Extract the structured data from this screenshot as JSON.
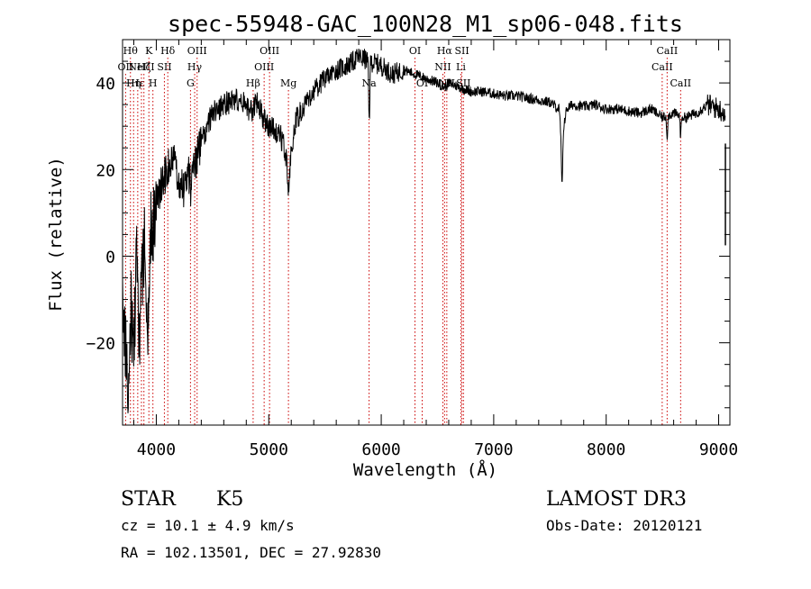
{
  "chart_data": {
    "type": "line",
    "title": "spec-55948-GAC_100N28_M1_sp06-048.fits",
    "xlabel": "Wavelength (Å)",
    "ylabel": "Flux (relative)",
    "xlim": [
      3700,
      9100
    ],
    "ylim": [
      -39,
      50
    ],
    "xticks": [
      4000,
      5000,
      6000,
      7000,
      8000,
      9000
    ],
    "xtick_labels": [
      "4000",
      "5000",
      "6000",
      "7000",
      "8000",
      "9000"
    ],
    "yticks": [
      -20,
      0,
      20,
      40
    ],
    "ytick_labels": [
      "−20",
      "0",
      "20",
      "40"
    ],
    "anchors": [
      [
        3700,
        -8
      ],
      [
        3725,
        -22
      ],
      [
        3750,
        -30
      ],
      [
        3775,
        -12
      ],
      [
        3800,
        -24
      ],
      [
        3825,
        2
      ],
      [
        3850,
        -20
      ],
      [
        3875,
        -4
      ],
      [
        3900,
        6
      ],
      [
        3925,
        -18
      ],
      [
        3950,
        8
      ],
      [
        3975,
        10
      ],
      [
        4000,
        12
      ],
      [
        4050,
        17
      ],
      [
        4100,
        20
      ],
      [
        4150,
        22
      ],
      [
        4200,
        18
      ],
      [
        4250,
        15
      ],
      [
        4300,
        20
      ],
      [
        4350,
        22
      ],
      [
        4400,
        26
      ],
      [
        4450,
        30
      ],
      [
        4500,
        33
      ],
      [
        4600,
        35
      ],
      [
        4700,
        36
      ],
      [
        4800,
        35
      ],
      [
        4850,
        33
      ],
      [
        4900,
        36
      ],
      [
        4950,
        32
      ],
      [
        5000,
        30
      ],
      [
        5100,
        28
      ],
      [
        5180,
        22
      ],
      [
        5250,
        32
      ],
      [
        5400,
        38
      ],
      [
        5500,
        41
      ],
      [
        5600,
        43
      ],
      [
        5700,
        44
      ],
      [
        5800,
        46
      ],
      [
        5900,
        45
      ],
      [
        6000,
        44
      ],
      [
        6100,
        42
      ],
      [
        6200,
        43
      ],
      [
        6300,
        42
      ],
      [
        6400,
        41
      ],
      [
        6500,
        40
      ],
      [
        6563,
        39
      ],
      [
        6600,
        40
      ],
      [
        6700,
        39
      ],
      [
        6800,
        38
      ],
      [
        6900,
        38
      ],
      [
        7000,
        37.5
      ],
      [
        7100,
        37
      ],
      [
        7200,
        37
      ],
      [
        7300,
        36.5
      ],
      [
        7400,
        36
      ],
      [
        7500,
        35.5
      ],
      [
        7580,
        34
      ],
      [
        7600,
        28
      ],
      [
        7620,
        30
      ],
      [
        7650,
        34
      ],
      [
        7700,
        35
      ],
      [
        7800,
        34.5
      ],
      [
        7900,
        35
      ],
      [
        8000,
        34
      ],
      [
        8100,
        34
      ],
      [
        8200,
        33.5
      ],
      [
        8300,
        33
      ],
      [
        8400,
        34
      ],
      [
        8500,
        32
      ],
      [
        8600,
        33
      ],
      [
        8700,
        32
      ],
      [
        8800,
        33
      ],
      [
        8900,
        35
      ],
      [
        9000,
        34
      ],
      [
        9060,
        33
      ]
    ],
    "dips": [
      {
        "x": 3968,
        "depth": 6,
        "halfwidth": 8
      },
      {
        "x": 4308,
        "depth": 5,
        "halfwidth": 10
      },
      {
        "x": 5175,
        "depth": 7,
        "halfwidth": 15
      },
      {
        "x": 5893,
        "depth": 14,
        "halfwidth": 7
      },
      {
        "x": 7608,
        "depth": 13,
        "halfwidth": 8
      },
      {
        "x": 8542,
        "depth": 5,
        "halfwidth": 6
      },
      {
        "x": 8662,
        "depth": 5,
        "halfwidth": 6
      }
    ],
    "spikes": [
      {
        "x": 9060,
        "value": 2.5
      },
      {
        "x": 9060,
        "value": 26
      }
    ],
    "line_markers": [
      {
        "x": 3727,
        "label": "OII",
        "row": 1
      },
      {
        "x": 3770,
        "label": "Hθ",
        "row": 0
      },
      {
        "x": 3798,
        "label": "Hη",
        "row": 2
      },
      {
        "x": 3835,
        "label": "Hε",
        "row": 2
      },
      {
        "x": 3868,
        "label": "NeIII",
        "row": 1
      },
      {
        "x": 3890,
        "label": "Hζ",
        "row": 1
      },
      {
        "x": 3934,
        "label": "K",
        "row": 0
      },
      {
        "x": 3970,
        "label": "H",
        "row": 2
      },
      {
        "x": 4072,
        "label": "SII",
        "row": 1
      },
      {
        "x": 4102,
        "label": "Hδ",
        "row": 0
      },
      {
        "x": 4304,
        "label": "G",
        "row": 2
      },
      {
        "x": 4341,
        "label": "Hγ",
        "row": 1
      },
      {
        "x": 4363,
        "label": "OIII",
        "row": 0
      },
      {
        "x": 4861,
        "label": "Hβ",
        "row": 2
      },
      {
        "x": 4959,
        "label": "OIII",
        "row": 1
      },
      {
        "x": 5007,
        "label": "OIII",
        "row": 0
      },
      {
        "x": 5175,
        "label": "Mg",
        "row": 2
      },
      {
        "x": 5892,
        "label": "Na",
        "row": 2
      },
      {
        "x": 6300,
        "label": "OI",
        "row": 0
      },
      {
        "x": 6364,
        "label": "OI",
        "row": 2
      },
      {
        "x": 6548,
        "label": "NII",
        "row": 1
      },
      {
        "x": 6563,
        "label": "Hα",
        "row": 0
      },
      {
        "x": 6583,
        "label": "NII",
        "row": 2
      },
      {
        "x": 6708,
        "label": "Li",
        "row": 1
      },
      {
        "x": 6717,
        "label": "SII",
        "row": 0
      },
      {
        "x": 6731,
        "label": "SII",
        "row": 2
      },
      {
        "x": 8498,
        "label": "CaII",
        "row": 1
      },
      {
        "x": 8542,
        "label": "CaII",
        "row": 0
      },
      {
        "x": 8662,
        "label": "CaII",
        "row": 2
      }
    ]
  },
  "info": {
    "class": "STAR",
    "subclass": "K5",
    "survey": "LAMOST DR3",
    "cz": "cz = 10.1 ± 4.9 km/s",
    "obs_date": "Obs-Date: 20120121",
    "radec": "RA = 102.13501, DEC =  27.92830"
  }
}
